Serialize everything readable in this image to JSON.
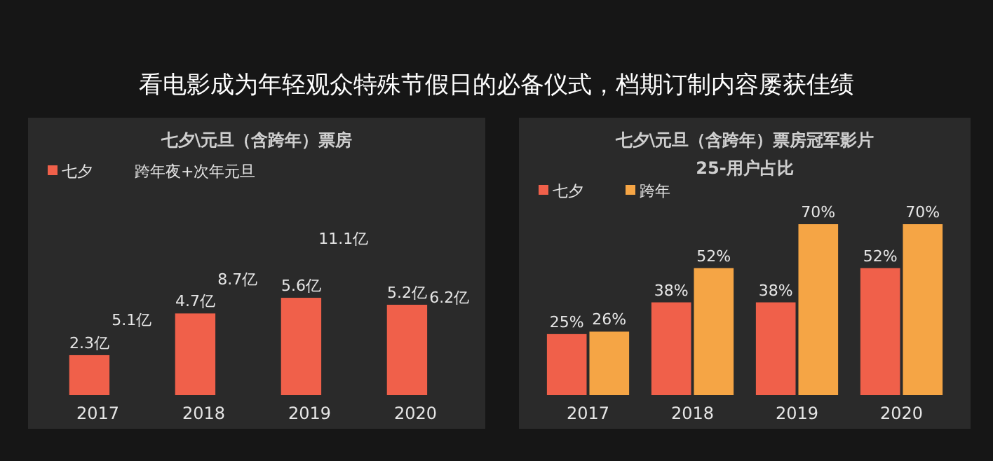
{
  "chart_data": [
    {
      "type": "bar",
      "title": "看电影成为年轻观众特殊节假日的必备仪式，档期订制内容屡获佳绩",
      "subtitle": "七夕\\元旦（含跨年）票房",
      "categories": [
        "2017",
        "2018",
        "2019",
        "2020"
      ],
      "series": [
        {
          "name": "七夕",
          "color": "#f0604a",
          "values": [
            2.3,
            4.7,
            5.6,
            5.2
          ],
          "value_labels": [
            "2.3亿",
            "4.7亿",
            "5.6亿",
            "5.2亿"
          ]
        }
      ],
      "annotations": [
        "跨年夜+次年元旦",
        "5.1亿",
        "8.7亿",
        "11.1亿",
        "6.2亿"
      ],
      "legend": "top left"
    },
    {
      "type": "bar",
      "title": "七夕\\元旦（含跨年）票房冠军影片",
      "subtitle": "25-用户占比",
      "categories": [
        "2017",
        "2018",
        "2019",
        "2020"
      ],
      "series": [
        {
          "name": "七夕",
          "color": "#f0604a",
          "values": [
            25,
            38,
            38,
            52
          ],
          "value_labels": [
            "25%",
            "38%",
            "38%",
            "52%"
          ]
        },
        {
          "name": "跨年",
          "color": "#f5a545",
          "values": [
            26,
            52,
            70,
            70
          ],
          "value_labels": [
            "26%",
            "52%",
            "70%",
            "70%"
          ]
        }
      ],
      "legend": "top left"
    }
  ]
}
